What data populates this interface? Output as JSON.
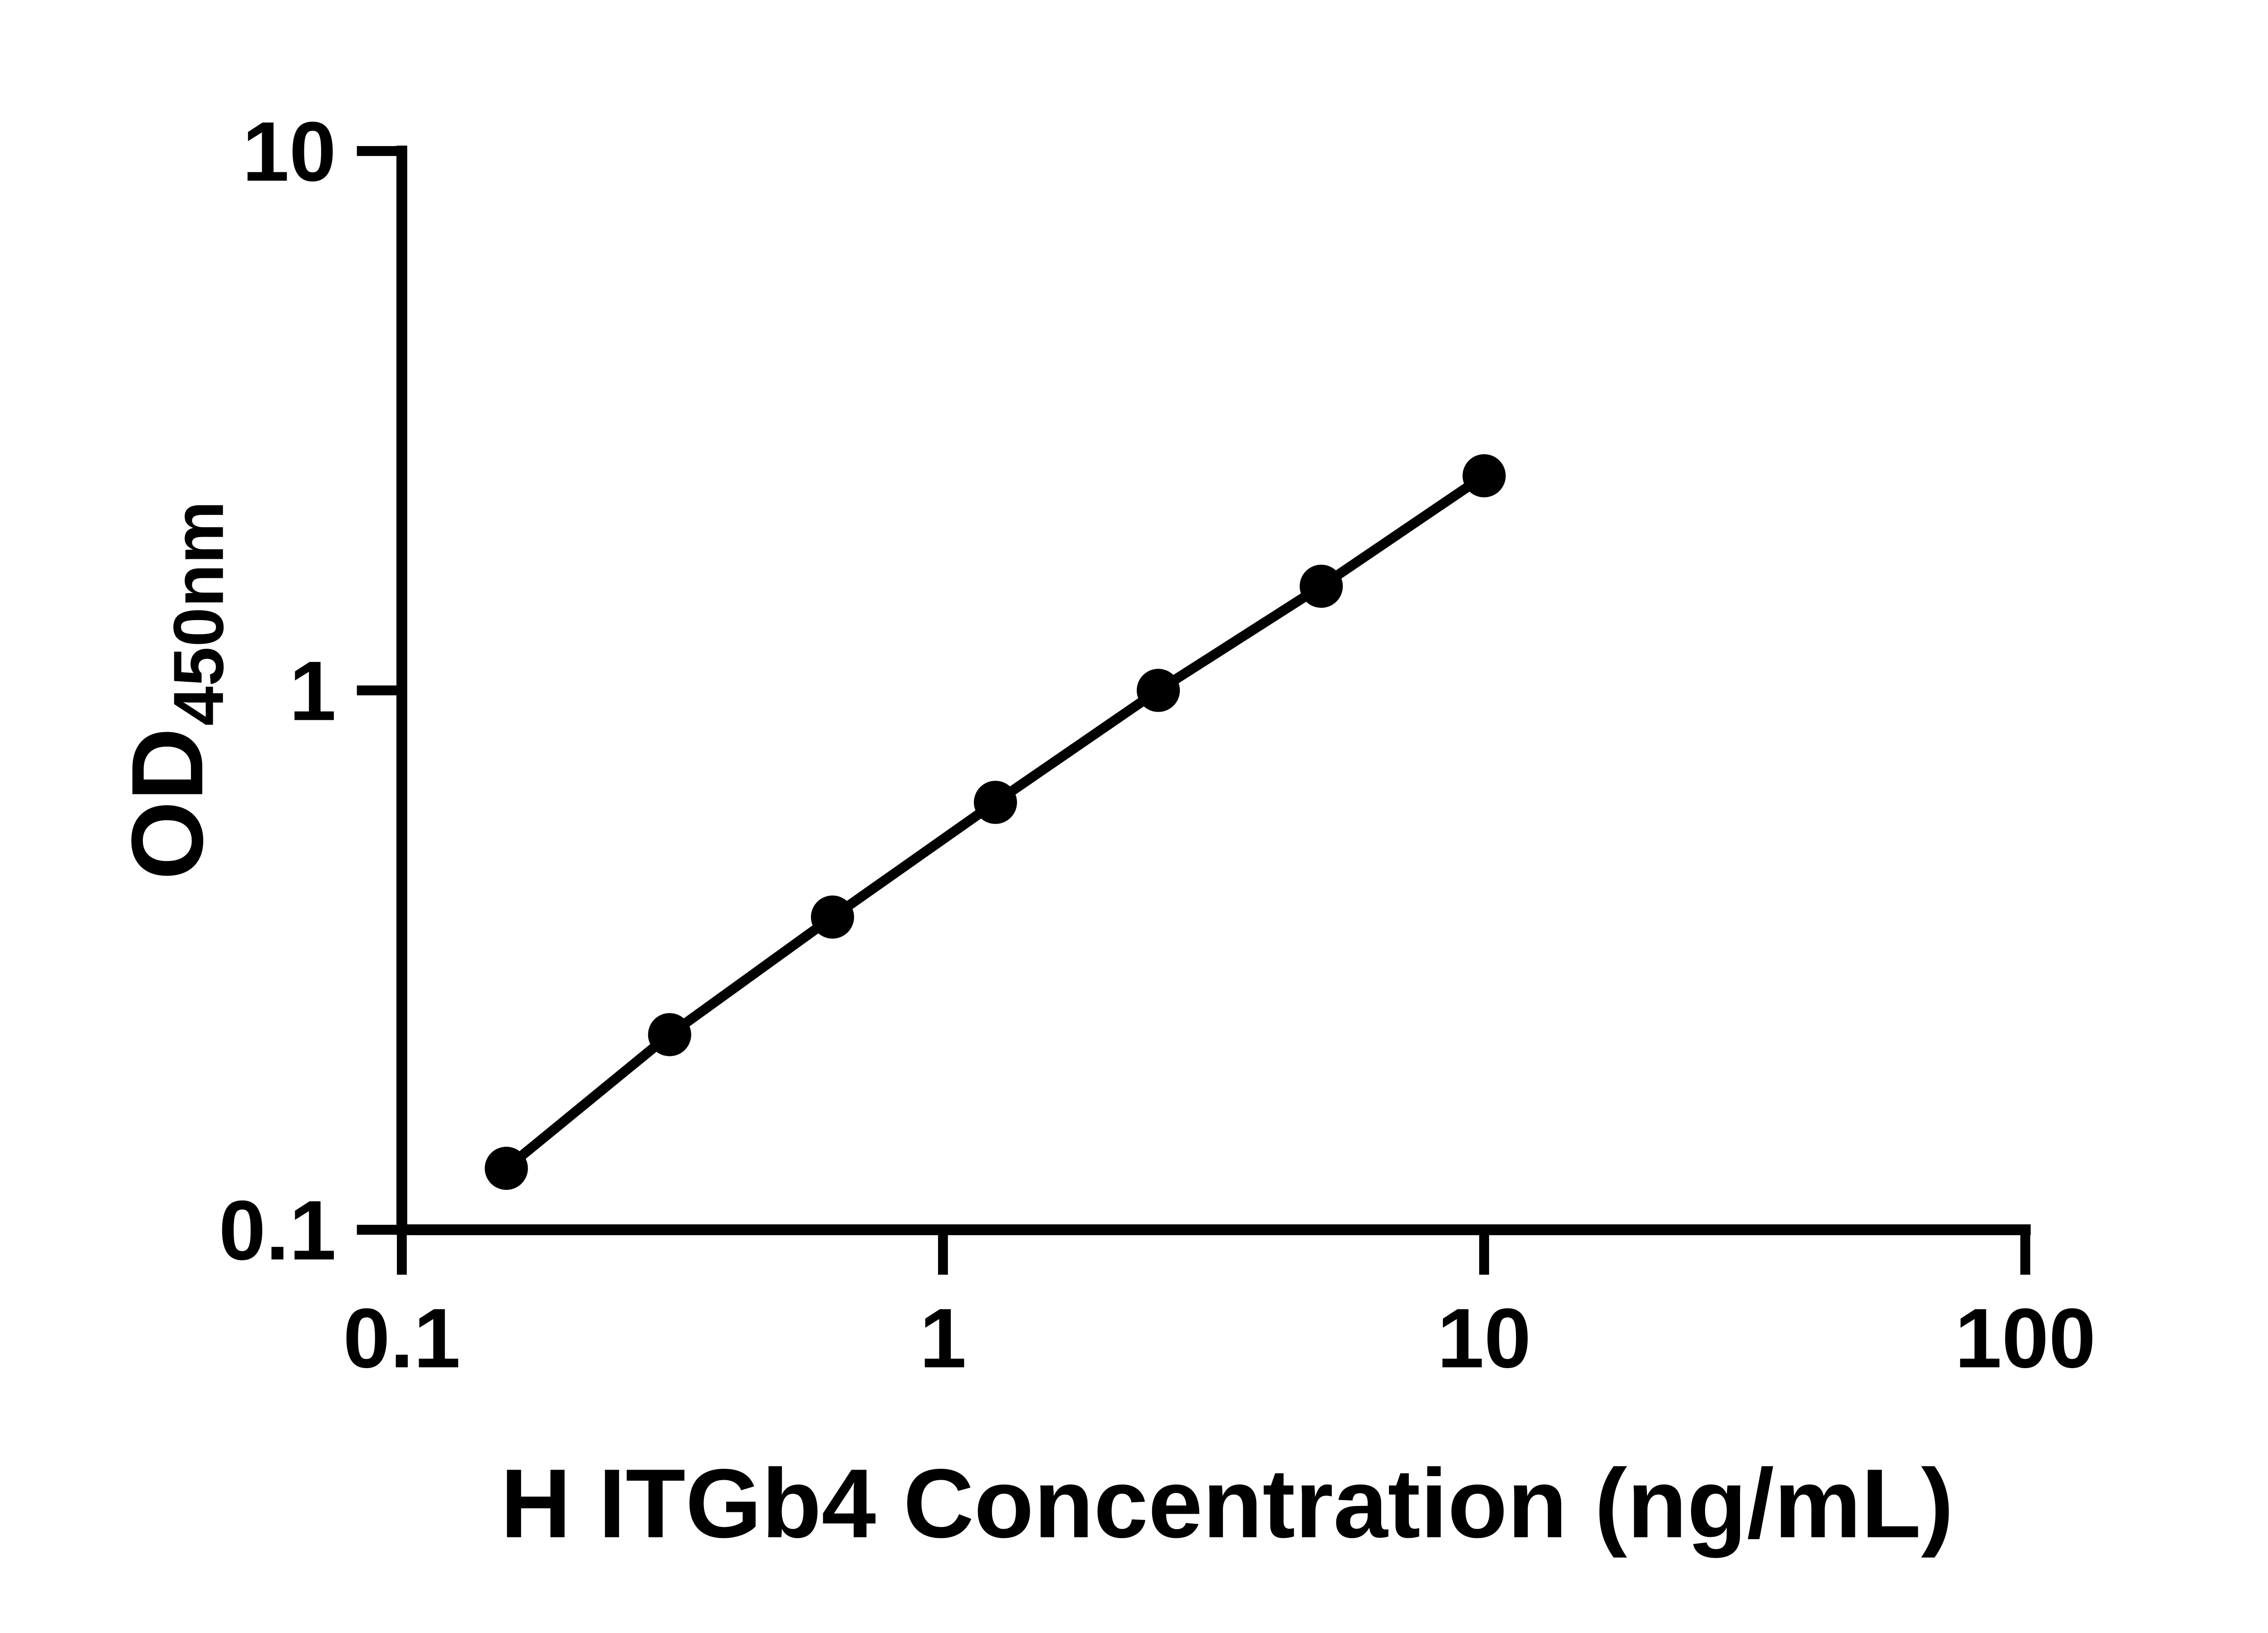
{
  "figure": {
    "background_color": "#ffffff",
    "ink_color": "#000000"
  },
  "chart_data": {
    "type": "scatter",
    "title": "",
    "xlabel": "H ITGb4 Concentration (ng/mL)",
    "ylabel_main": "OD",
    "ylabel_sub": "450nm",
    "x_scale": "log",
    "y_scale": "log",
    "xlim": [
      0.1,
      100
    ],
    "ylim": [
      0.1,
      10
    ],
    "grid": false,
    "legend": false,
    "marker": "filled-circle",
    "fit_line_through_points": true,
    "x_ticks": [
      {
        "value": 0.1,
        "label": "0.1"
      },
      {
        "value": 1,
        "label": "1"
      },
      {
        "value": 10,
        "label": "10"
      },
      {
        "value": 100,
        "label": "100"
      }
    ],
    "y_ticks": [
      {
        "value": 0.1,
        "label": "0.1"
      },
      {
        "value": 1,
        "label": "1"
      },
      {
        "value": 10,
        "label": "10"
      }
    ],
    "points": [
      {
        "x": 0.156,
        "y": 0.13
      },
      {
        "x": 0.3125,
        "y": 0.23
      },
      {
        "x": 0.625,
        "y": 0.38
      },
      {
        "x": 1.25,
        "y": 0.62
      },
      {
        "x": 2.5,
        "y": 1.0
      },
      {
        "x": 5,
        "y": 1.56
      },
      {
        "x": 10,
        "y": 2.5
      }
    ]
  }
}
